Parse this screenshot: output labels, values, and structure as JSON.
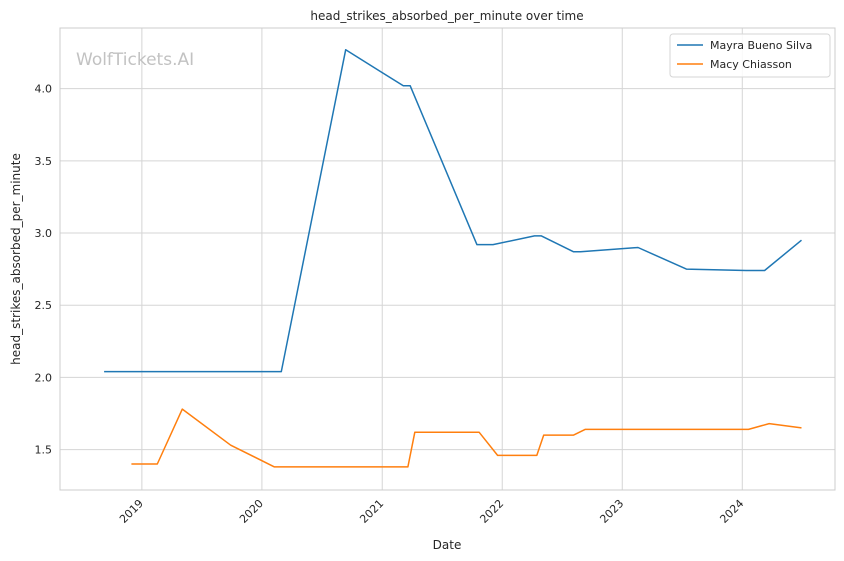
{
  "chart_data": {
    "type": "line",
    "title": "head_strikes_absorbed_per_minute over time",
    "xlabel": "Date",
    "ylabel": "head_strikes_absorbed_per_minute",
    "watermark": "WolfTickets.AI",
    "grid": true,
    "legend_position": "top-right",
    "xlim": [
      "2018-04-27",
      "2024-10-09"
    ],
    "ylim": [
      1.22,
      4.42
    ],
    "x_ticks": [
      "2019",
      "2020",
      "2021",
      "2022",
      "2023",
      "2024"
    ],
    "y_ticks": [
      "1.5",
      "2.0",
      "2.5",
      "3.0",
      "3.5",
      "4.0"
    ],
    "series": [
      {
        "name": "Mayra Bueno Silva",
        "color": "#1f77b4",
        "points": [
          [
            "2018-09-08",
            2.04
          ],
          [
            "2020-02-29",
            2.04
          ],
          [
            "2020-09-12",
            4.27
          ],
          [
            "2021-03-06",
            4.02
          ],
          [
            "2021-03-27",
            4.02
          ],
          [
            "2021-10-16",
            2.92
          ],
          [
            "2021-12-04",
            2.92
          ],
          [
            "2022-04-09",
            2.98
          ],
          [
            "2022-04-30",
            2.98
          ],
          [
            "2022-08-06",
            2.87
          ],
          [
            "2022-08-27",
            2.87
          ],
          [
            "2023-02-18",
            2.9
          ],
          [
            "2023-07-15",
            2.75
          ],
          [
            "2024-01-13",
            2.74
          ],
          [
            "2024-03-09",
            2.74
          ],
          [
            "2024-06-29",
            2.95
          ]
        ]
      },
      {
        "name": "Macy Chiasson",
        "color": "#ff7f0e",
        "points": [
          [
            "2018-11-30",
            1.4
          ],
          [
            "2019-02-17",
            1.4
          ],
          [
            "2019-05-04",
            1.78
          ],
          [
            "2019-09-28",
            1.53
          ],
          [
            "2020-02-08",
            1.38
          ],
          [
            "2021-03-20",
            1.38
          ],
          [
            "2021-04-10",
            1.62
          ],
          [
            "2021-10-23",
            1.62
          ],
          [
            "2021-12-18",
            1.46
          ],
          [
            "2022-04-16",
            1.46
          ],
          [
            "2022-05-07",
            1.6
          ],
          [
            "2022-08-06",
            1.6
          ],
          [
            "2022-09-10",
            1.64
          ],
          [
            "2024-01-20",
            1.64
          ],
          [
            "2024-03-23",
            1.68
          ],
          [
            "2024-06-29",
            1.65
          ]
        ]
      }
    ]
  }
}
